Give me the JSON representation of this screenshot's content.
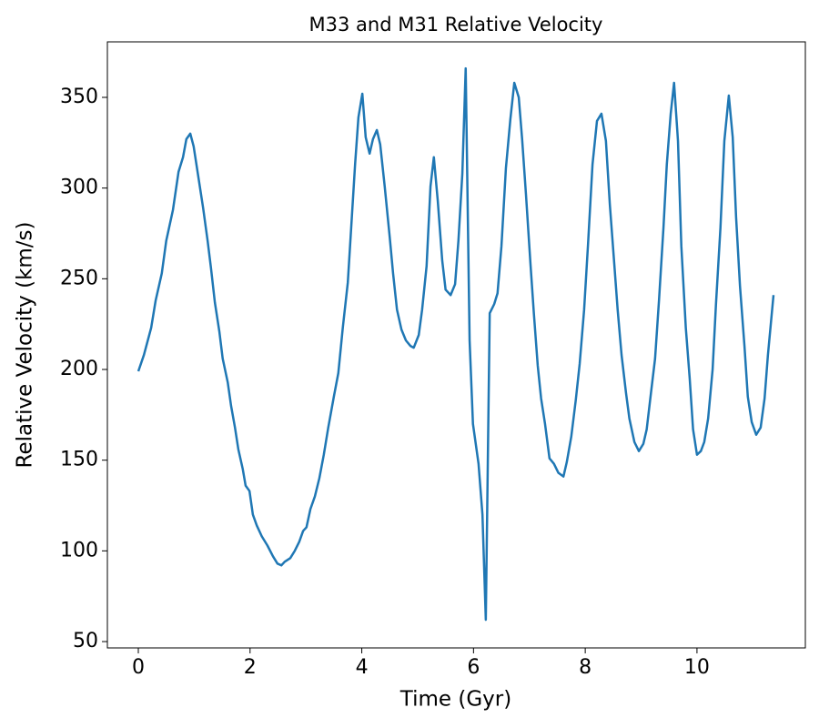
{
  "chart_data": {
    "type": "line",
    "title": "M33 and M31 Relative Velocity",
    "x_label": "Time (Gyr)",
    "y_label": "Relative Velocity (km/s)",
    "xlim": [
      -0.554,
      11.94
    ],
    "ylim": [
      46.5,
      380.6
    ],
    "xticks": [
      0,
      2,
      4,
      6,
      8,
      10
    ],
    "yticks": [
      50,
      100,
      150,
      200,
      250,
      300,
      350
    ],
    "grid": false,
    "series": [
      {
        "color": "#1f77b4",
        "x": [
          0,
          0.1,
          0.23,
          0.31,
          0.42,
          0.5,
          0.62,
          0.72,
          0.8,
          0.86,
          0.93,
          0.99,
          1.07,
          1.16,
          1.24,
          1.3,
          1.37,
          1.45,
          1.51,
          1.6,
          1.66,
          1.73,
          1.79,
          1.87,
          1.92,
          1.99,
          2.05,
          2.12,
          2.21,
          2.31,
          2.41,
          2.49,
          2.56,
          2.62,
          2.72,
          2.8,
          2.88,
          2.95,
          3.01,
          3.08,
          3.16,
          3.24,
          3.32,
          3.4,
          3.5,
          3.58,
          3.66,
          3.75,
          3.81,
          3.88,
          3.94,
          4.01,
          4.07,
          4.14,
          4.2,
          4.27,
          4.33,
          4.41,
          4.5,
          4.56,
          4.63,
          4.71,
          4.79,
          4.87,
          4.93,
          5.02,
          5.08,
          5.16,
          5.23,
          5.29,
          5.36,
          5.44,
          5.5,
          5.59,
          5.67,
          5.73,
          5.8,
          5.86,
          5.93,
          5.99,
          6.09,
          6.16,
          6.22,
          6.29,
          6.37,
          6.43,
          6.5,
          6.58,
          6.66,
          6.73,
          6.81,
          6.87,
          6.94,
          7.02,
          7.08,
          7.15,
          7.21,
          7.28,
          7.36,
          7.44,
          7.52,
          7.61,
          7.67,
          7.75,
          7.83,
          7.9,
          7.98,
          8.05,
          8.13,
          8.21,
          8.29,
          8.37,
          8.44,
          8.52,
          8.58,
          8.65,
          8.73,
          8.79,
          8.88,
          8.96,
          9.04,
          9.1,
          9.18,
          9.25,
          9.32,
          9.4,
          9.46,
          9.53,
          9.59,
          9.66,
          9.72,
          9.8,
          9.87,
          9.93,
          10.0,
          10.07,
          10.13,
          10.2,
          10.28,
          10.34,
          10.42,
          10.49,
          10.57,
          10.64,
          10.7,
          10.77,
          10.85,
          10.91,
          10.98,
          11.06,
          11.14,
          11.21,
          11.27,
          11.37
        ],
        "values": [
          199,
          208,
          223,
          238,
          253,
          271,
          288,
          309,
          317,
          327,
          330,
          323,
          307,
          289,
          271,
          256,
          237,
          221,
          206,
          193,
          180,
          168,
          156,
          145,
          136,
          133,
          120,
          114,
          108,
          103,
          97,
          93,
          92,
          94,
          96,
          100,
          105,
          111,
          113,
          123,
          130,
          140,
          153,
          168,
          185,
          198,
          223,
          248,
          278,
          313,
          339,
          352,
          328,
          319,
          327,
          332,
          324,
          301,
          273,
          253,
          233,
          222,
          216,
          213,
          212,
          219,
          233,
          257,
          301,
          317,
          293,
          260,
          244,
          241,
          247,
          271,
          308,
          366,
          216,
          170,
          148,
          120,
          62,
          231,
          236,
          242,
          268,
          311,
          338,
          358,
          350,
          327,
          296,
          258,
          231,
          202,
          184,
          170,
          151,
          148,
          143,
          141,
          149,
          163,
          183,
          203,
          233,
          269,
          313,
          337,
          341,
          326,
          291,
          258,
          233,
          208,
          187,
          173,
          160,
          155,
          159,
          167,
          188,
          206,
          238,
          278,
          313,
          341,
          358,
          326,
          268,
          223,
          195,
          167,
          153,
          155,
          160,
          173,
          200,
          236,
          278,
          326,
          351,
          328,
          284,
          246,
          213,
          185,
          171,
          164,
          168,
          184,
          208,
          241
        ]
      }
    ]
  }
}
